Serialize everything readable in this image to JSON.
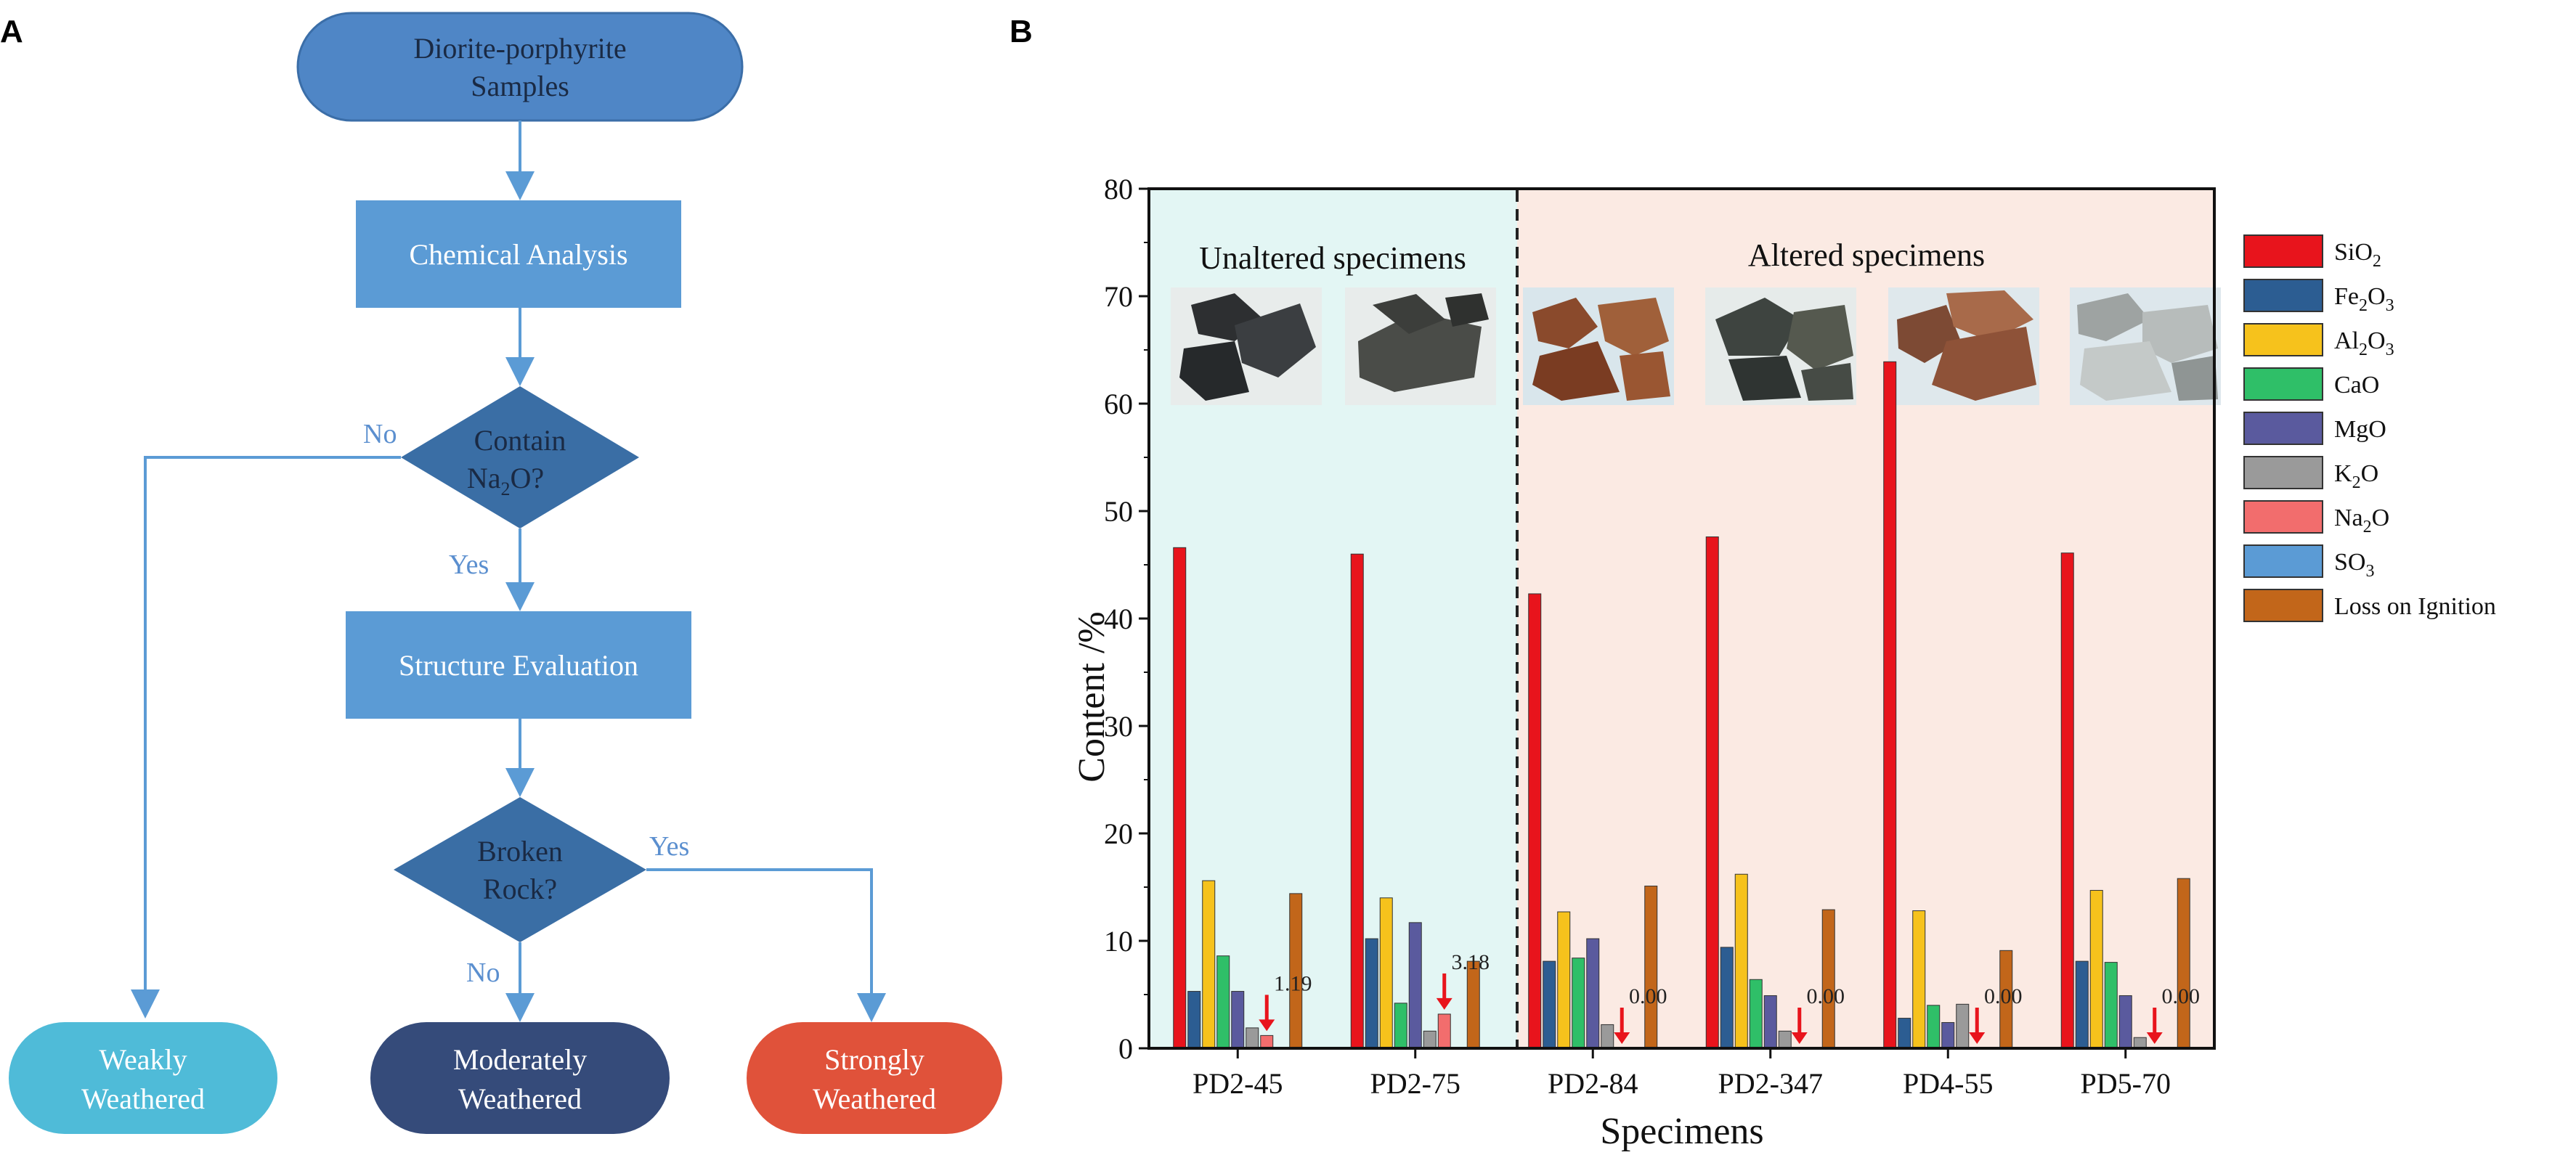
{
  "panel_a": {
    "label": "A",
    "start_line1": "Diorite-porphyrite",
    "start_line2": "Samples",
    "chemical_analysis": "Chemical Analysis",
    "diamond1_line1": "Contain",
    "diamond1_line2_pre": "Na",
    "diamond1_line2_sub": "2",
    "diamond1_line2_post": "O?",
    "no_label_1": "No",
    "yes_label_1": "Yes",
    "structure_evaluation": "Structure Evaluation",
    "diamond2_line1": "Broken",
    "diamond2_line2": "Rock?",
    "yes_label_2": "Yes",
    "no_label_2": "No",
    "weak_line1": "Weakly",
    "weak_line2": "Weathered",
    "moderate_line1": "Moderately",
    "moderate_line2": "Weathered",
    "strong_line1": "Strongly",
    "strong_line2": "Weathered",
    "colors": {
      "start": "#4f86c6",
      "process": "#5b9bd5",
      "decision": "#3a6ea5",
      "weak": "#4fbbd8",
      "moderate": "#354b7a",
      "strong": "#e0523a",
      "arrow": "#5b9bd5"
    }
  },
  "panel_b": {
    "label": "B",
    "region_unaltered": "Unaltered specimens",
    "region_altered": "Altered specimens",
    "colors": {
      "unaltered_bg": "#e3f6f4",
      "altered_bg": "#fbeae3"
    }
  },
  "chart_data": {
    "type": "bar",
    "title": "",
    "xlabel": "Specimens",
    "ylabel": "Content /%",
    "ylim": [
      0,
      80
    ],
    "yticks": [
      "0",
      "10",
      "20",
      "30",
      "40",
      "50",
      "60",
      "70",
      "80"
    ],
    "categories": [
      "PD2-45",
      "PD2-75",
      "PD2-84",
      "PD2-347",
      "PD4-55",
      "PD5-70"
    ],
    "series": [
      {
        "name": "SiO2",
        "label_pre": "SiO",
        "label_sub": "2",
        "label_post": "",
        "color": "#e8141c",
        "values": [
          46.6,
          46.0,
          42.3,
          47.6,
          63.9,
          46.1
        ]
      },
      {
        "name": "Fe2O3",
        "label_pre": "Fe",
        "label_sub": "2",
        "label_post": "O",
        "label_sub2": "3",
        "color": "#2c5d92",
        "values": [
          5.3,
          10.2,
          8.1,
          9.4,
          2.8,
          8.1
        ]
      },
      {
        "name": "Al2O3",
        "label_pre": "Al",
        "label_sub": "2",
        "label_post": "O",
        "label_sub2": "3",
        "color": "#f6c21c",
        "values": [
          15.6,
          14.0,
          12.7,
          16.2,
          12.8,
          14.7
        ]
      },
      {
        "name": "CaO",
        "label_pre": "CaO",
        "label_sub": "",
        "label_post": "",
        "color": "#2fbf68",
        "values": [
          8.6,
          4.2,
          8.4,
          6.4,
          4.0,
          8.0
        ]
      },
      {
        "name": "MgO",
        "label_pre": "MgO",
        "label_sub": "",
        "label_post": "",
        "color": "#5a5a9e",
        "values": [
          5.3,
          11.7,
          10.2,
          4.9,
          2.4,
          4.9
        ]
      },
      {
        "name": "K2O",
        "label_pre": "K",
        "label_sub": "2",
        "label_post": "O",
        "color": "#9a9a9a",
        "values": [
          1.9,
          1.6,
          2.2,
          1.6,
          4.1,
          1.0
        ]
      },
      {
        "name": "Na2O",
        "label_pre": "Na",
        "label_sub": "2",
        "label_post": "O",
        "color": "#f26d6d",
        "values": [
          1.19,
          3.18,
          0.0,
          0.0,
          0.0,
          0.0
        ]
      },
      {
        "name": "SO3",
        "label_pre": "SO",
        "label_sub": "3",
        "label_post": "",
        "color": "#5b9bd5",
        "values": [
          0,
          0,
          0,
          0,
          0,
          0
        ]
      },
      {
        "name": "Loss on Ignition",
        "label_pre": "Loss on Ignition",
        "label_sub": "",
        "label_post": "",
        "color": "#c2661a",
        "values": [
          14.4,
          8.1,
          15.1,
          12.9,
          9.1,
          15.8
        ]
      }
    ],
    "na2o_annotations": [
      "1.19",
      "3.18",
      "0.00",
      "0.00",
      "0.00",
      "0.00"
    ],
    "annotation_arrow_color": "#e8141c"
  }
}
